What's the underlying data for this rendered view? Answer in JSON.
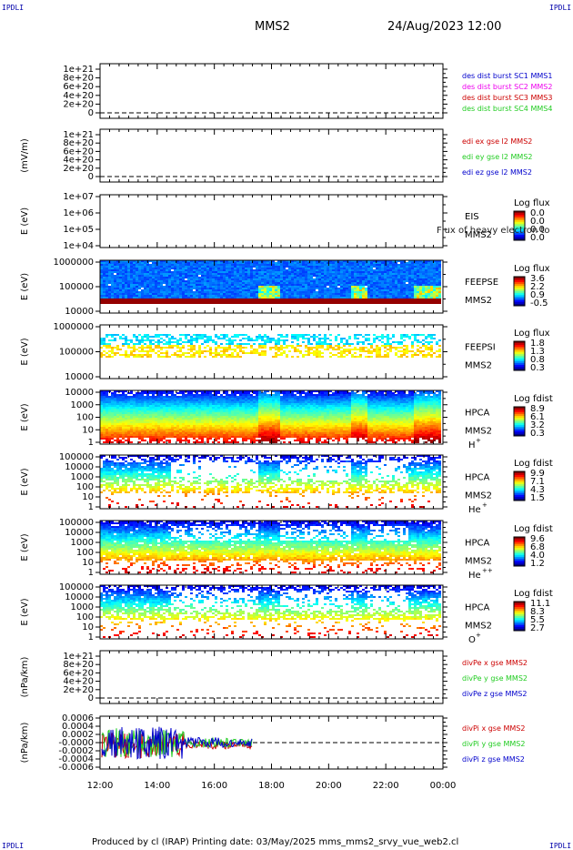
{
  "header": {
    "corner_tl": "IPDLI",
    "corner_tr": "IPDLI",
    "corner_bl": "IPDLI",
    "corner_br": "IPDLI",
    "spacecraft": "MMS2",
    "datetime": "24/Aug/2023 12:00"
  },
  "footer": {
    "text": "Produced by cl (IRAP)   Printing date: 03/May/2025   mms_mms2_srvy_vue_web2.cl"
  },
  "colors": {
    "blue": "#0000cc",
    "magenta": "#ee00ee",
    "red": "#cc0000",
    "green": "#22cc22"
  },
  "chart_data": [
    {
      "type": "line",
      "ylabel": "",
      "yticks": [
        "1e+21",
        "8e+20",
        "6e+20",
        "4e+20",
        "2e+20",
        "0"
      ],
      "legend": [
        {
          "name": "des dist burst SC1 MMS1",
          "color": "#0000cc"
        },
        {
          "name": "des dist burst SC2 MMS2",
          "color": "#ee00ee"
        },
        {
          "name": "des dist burst SC3 MMS3",
          "color": "#cc0000"
        },
        {
          "name": "des dist burst SC4 MMS4",
          "color": "#22cc22"
        }
      ],
      "zero_line": true
    },
    {
      "type": "line",
      "ylabel": "(mV/m)",
      "yticks": [
        "1e+21",
        "8e+20",
        "6e+20",
        "4e+20",
        "2e+20",
        "0"
      ],
      "legend": [
        {
          "name": "edi ex gse l2 MMS2",
          "color": "#cc0000"
        },
        {
          "name": "edi ey gse l2 MMS2",
          "color": "#22cc22"
        },
        {
          "name": "edi ez gse l2 MMS2",
          "color": "#0000cc"
        }
      ],
      "zero_line": true
    },
    {
      "type": "heatmap",
      "ylabel": "E (eV)",
      "yticks": [
        "1e+07",
        "1e+06",
        "1e+05",
        "1e+04"
      ],
      "instrument": "EIS",
      "species": "",
      "sc": "MMS2",
      "overlay_text": "Flux of heavy electron to",
      "cbar_title": "Log flux",
      "cbar_ticks": [
        "0.0",
        "0.0",
        "0.0",
        "0.0"
      ],
      "pattern": "empty"
    },
    {
      "type": "heatmap",
      "ylabel": "E (eV)",
      "yticks": [
        "1000000",
        "100000",
        "10000"
      ],
      "instrument": "FEEPSE",
      "species": "",
      "sc": "MMS2",
      "cbar_title": "Log flux",
      "cbar_ticks": [
        "3.6",
        "2.2",
        "0.9",
        "-0.5"
      ],
      "pattern": "feepse"
    },
    {
      "type": "heatmap",
      "ylabel": "E (eV)",
      "yticks": [
        "1000000",
        "100000",
        "10000"
      ],
      "instrument": "FEEPSI",
      "species": "",
      "sc": "MMS2",
      "cbar_title": "Log flux",
      "cbar_ticks": [
        "1.8",
        "1.3",
        "0.8",
        "0.3"
      ],
      "pattern": "feepsi"
    },
    {
      "type": "heatmap",
      "ylabel": "E (eV)",
      "yticks": [
        "10000",
        "1000",
        "100",
        "10",
        "1"
      ],
      "instrument": "HPCA",
      "species": "H",
      "species_sup": "+",
      "sc": "MMS2",
      "cbar_title": "Log fdist",
      "cbar_ticks": [
        "8.9",
        "6.1",
        "3.2",
        "0.3"
      ],
      "pattern": "hplus"
    },
    {
      "type": "heatmap",
      "ylabel": "E (eV)",
      "yticks": [
        "100000",
        "10000",
        "1000",
        "100",
        "10",
        "1"
      ],
      "instrument": "HPCA",
      "species": "He",
      "species_sup": "+",
      "sc": "MMS2",
      "cbar_title": "Log fdist",
      "cbar_ticks": [
        "9.9",
        "7.1",
        "4.3",
        "1.5"
      ],
      "pattern": "heplus"
    },
    {
      "type": "heatmap",
      "ylabel": "E (eV)",
      "yticks": [
        "100000",
        "10000",
        "1000",
        "100",
        "10",
        "1"
      ],
      "instrument": "HPCA",
      "species": "He",
      "species_sup": "++",
      "sc": "MMS2",
      "cbar_title": "Log fdist",
      "cbar_ticks": [
        "9.6",
        "6.8",
        "4.0",
        "1.2"
      ],
      "pattern": "heplusplus"
    },
    {
      "type": "heatmap",
      "ylabel": "E (eV)",
      "yticks": [
        "100000",
        "10000",
        "1000",
        "100",
        "10",
        "1"
      ],
      "instrument": "HPCA",
      "species": "O",
      "species_sup": "+",
      "sc": "MMS2",
      "cbar_title": "Log fdist",
      "cbar_ticks": [
        "11.1",
        "8.3",
        "5.5",
        "2.7"
      ],
      "pattern": "oplus"
    },
    {
      "type": "line",
      "ylabel": "(nPa/km)",
      "yticks": [
        "1e+21",
        "8e+20",
        "6e+20",
        "4e+20",
        "2e+20",
        "0"
      ],
      "legend": [
        {
          "name": "divPe x gse MMS2",
          "color": "#cc0000"
        },
        {
          "name": "divPe y gse MMS2",
          "color": "#22cc22"
        },
        {
          "name": "divPe z gse MMS2",
          "color": "#0000cc"
        }
      ],
      "zero_line": true
    },
    {
      "type": "line",
      "ylabel": "(nPa/km)",
      "yticks": [
        "0.0006",
        "0.0004",
        "0.0002",
        "-0.0000",
        "-0.0002",
        "-0.0004",
        "-0.0006"
      ],
      "ylim": [
        -0.0007,
        0.0007
      ],
      "legend": [
        {
          "name": "divPi x gse MMS2",
          "color": "#cc0000"
        },
        {
          "name": "divPi y gse MMS2",
          "color": "#22cc22"
        },
        {
          "name": "divPi z gse MMS2",
          "color": "#0000cc"
        }
      ],
      "zero_line": true,
      "series_time_range": [
        "12:00",
        "17:20"
      ]
    }
  ],
  "x_axis": {
    "ticks": [
      "12:00",
      "14:00",
      "16:00",
      "18:00",
      "20:00",
      "22:00",
      "00:00"
    ]
  }
}
